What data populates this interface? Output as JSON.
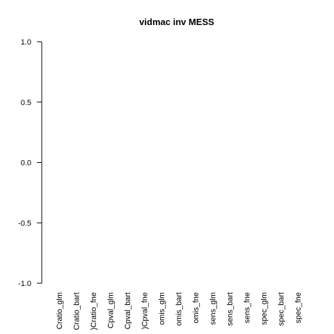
{
  "chart_data": {
    "type": "box",
    "title": "vidmac inv MESS",
    "categories": [
      "Cratio_glm",
      "Cratio_bart",
      ")Cratio_fne",
      "Cpval_glm",
      "Cpval_bart",
      ")Cpval_fne",
      "omis_glm",
      "omis_bart",
      "omis_fne",
      "sens_glm",
      "sens_bart",
      "sens_fne",
      "spec_glm",
      "spec_bart",
      "spec_fne"
    ],
    "ylim": [
      -1,
      1
    ],
    "yticks": [
      {
        "value": -1,
        "label": "-1.0"
      },
      -0.5,
      {
        "value": 0,
        "label": "0.0"
      },
      0.5,
      {
        "value": 1,
        "label": "1.0"
      }
    ]
  }
}
